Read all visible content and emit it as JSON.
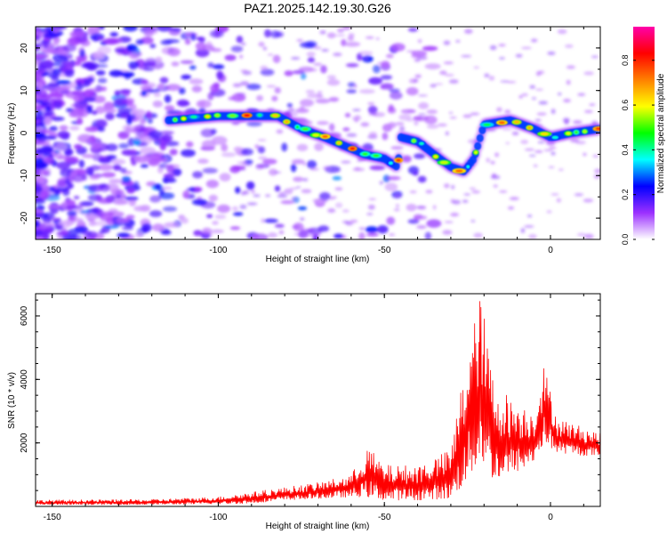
{
  "title": "PAZ1.2025.142.19.30.G26",
  "chart_data": [
    {
      "type": "heatmap",
      "panel": "spectrogram",
      "xlabel": "Height of straight line (km)",
      "ylabel": "Frequency (Hz)",
      "xlim": [
        -155,
        15
      ],
      "ylim": [
        -25,
        25
      ],
      "xticks": [
        -150,
        -100,
        -50,
        0
      ],
      "yticks": [
        -20,
        -10,
        0,
        10,
        20
      ],
      "colormap": [
        "#ffffff",
        "#9b30ff",
        "#0000ff",
        "#00ffff",
        "#00ff00",
        "#ffff00",
        "#ff8000",
        "#ff0000",
        "#ff00aa"
      ],
      "doppler_trace": [
        {
          "x": -115,
          "y": 3
        },
        {
          "x": -100,
          "y": 4
        },
        {
          "x": -90,
          "y": 4
        },
        {
          "x": -82,
          "y": 4
        },
        {
          "x": -75,
          "y": 1
        },
        {
          "x": -68,
          "y": -1
        },
        {
          "x": -62,
          "y": -3
        },
        {
          "x": -56,
          "y": -5
        },
        {
          "x": -50,
          "y": -6
        },
        {
          "x": -46,
          "y": -8
        },
        {
          "x": -45,
          "y": -1
        },
        {
          "x": -40,
          "y": -2
        },
        {
          "x": -35,
          "y": -5
        },
        {
          "x": -30,
          "y": -8
        },
        {
          "x": -26,
          "y": -9
        },
        {
          "x": -23,
          "y": -6
        },
        {
          "x": -20,
          "y": 2
        },
        {
          "x": -12,
          "y": 3
        },
        {
          "x": -5,
          "y": 1
        },
        {
          "x": 0,
          "y": -1
        },
        {
          "x": 6,
          "y": 0
        },
        {
          "x": 15,
          "y": 1
        }
      ],
      "colorbar": {
        "label": "Normalized spectral amplitude",
        "ticks": [
          "0.0",
          "0.2",
          "0.4",
          "0.6",
          "0.8"
        ],
        "range": [
          0,
          0.95
        ]
      }
    },
    {
      "type": "line",
      "panel": "snr",
      "xlabel": "Height of straight line (km)",
      "ylabel": "SNR (10 * v/v)",
      "xlim": [
        -155,
        15
      ],
      "ylim": [
        0,
        6700
      ],
      "xticks": [
        -150,
        -100,
        -50,
        0
      ],
      "yticks": [
        2000,
        4000,
        6000
      ],
      "series": [
        {
          "color": "#ff0000",
          "envelope": [
            {
              "x": -155,
              "lo": 50,
              "hi": 200
            },
            {
              "x": -120,
              "lo": 60,
              "hi": 220
            },
            {
              "x": -100,
              "lo": 80,
              "hi": 300
            },
            {
              "x": -90,
              "lo": 100,
              "hi": 450
            },
            {
              "x": -80,
              "lo": 200,
              "hi": 600
            },
            {
              "x": -70,
              "lo": 250,
              "hi": 750
            },
            {
              "x": -60,
              "lo": 300,
              "hi": 1000
            },
            {
              "x": -55,
              "lo": 300,
              "hi": 1900
            },
            {
              "x": -50,
              "lo": 200,
              "hi": 1300
            },
            {
              "x": -40,
              "lo": 200,
              "hi": 1300
            },
            {
              "x": -30,
              "lo": 250,
              "hi": 1800
            },
            {
              "x": -25,
              "lo": 800,
              "hi": 5000
            },
            {
              "x": -21,
              "lo": 1500,
              "hi": 6700
            },
            {
              "x": -17,
              "lo": 800,
              "hi": 3900
            },
            {
              "x": -10,
              "lo": 1100,
              "hi": 3300
            },
            {
              "x": -5,
              "lo": 1400,
              "hi": 3000
            },
            {
              "x": -2,
              "lo": 2000,
              "hi": 4500
            },
            {
              "x": 2,
              "lo": 1700,
              "hi": 2800
            },
            {
              "x": 10,
              "lo": 1600,
              "hi": 2500
            },
            {
              "x": 15,
              "lo": 1600,
              "hi": 2300
            }
          ]
        }
      ]
    }
  ]
}
